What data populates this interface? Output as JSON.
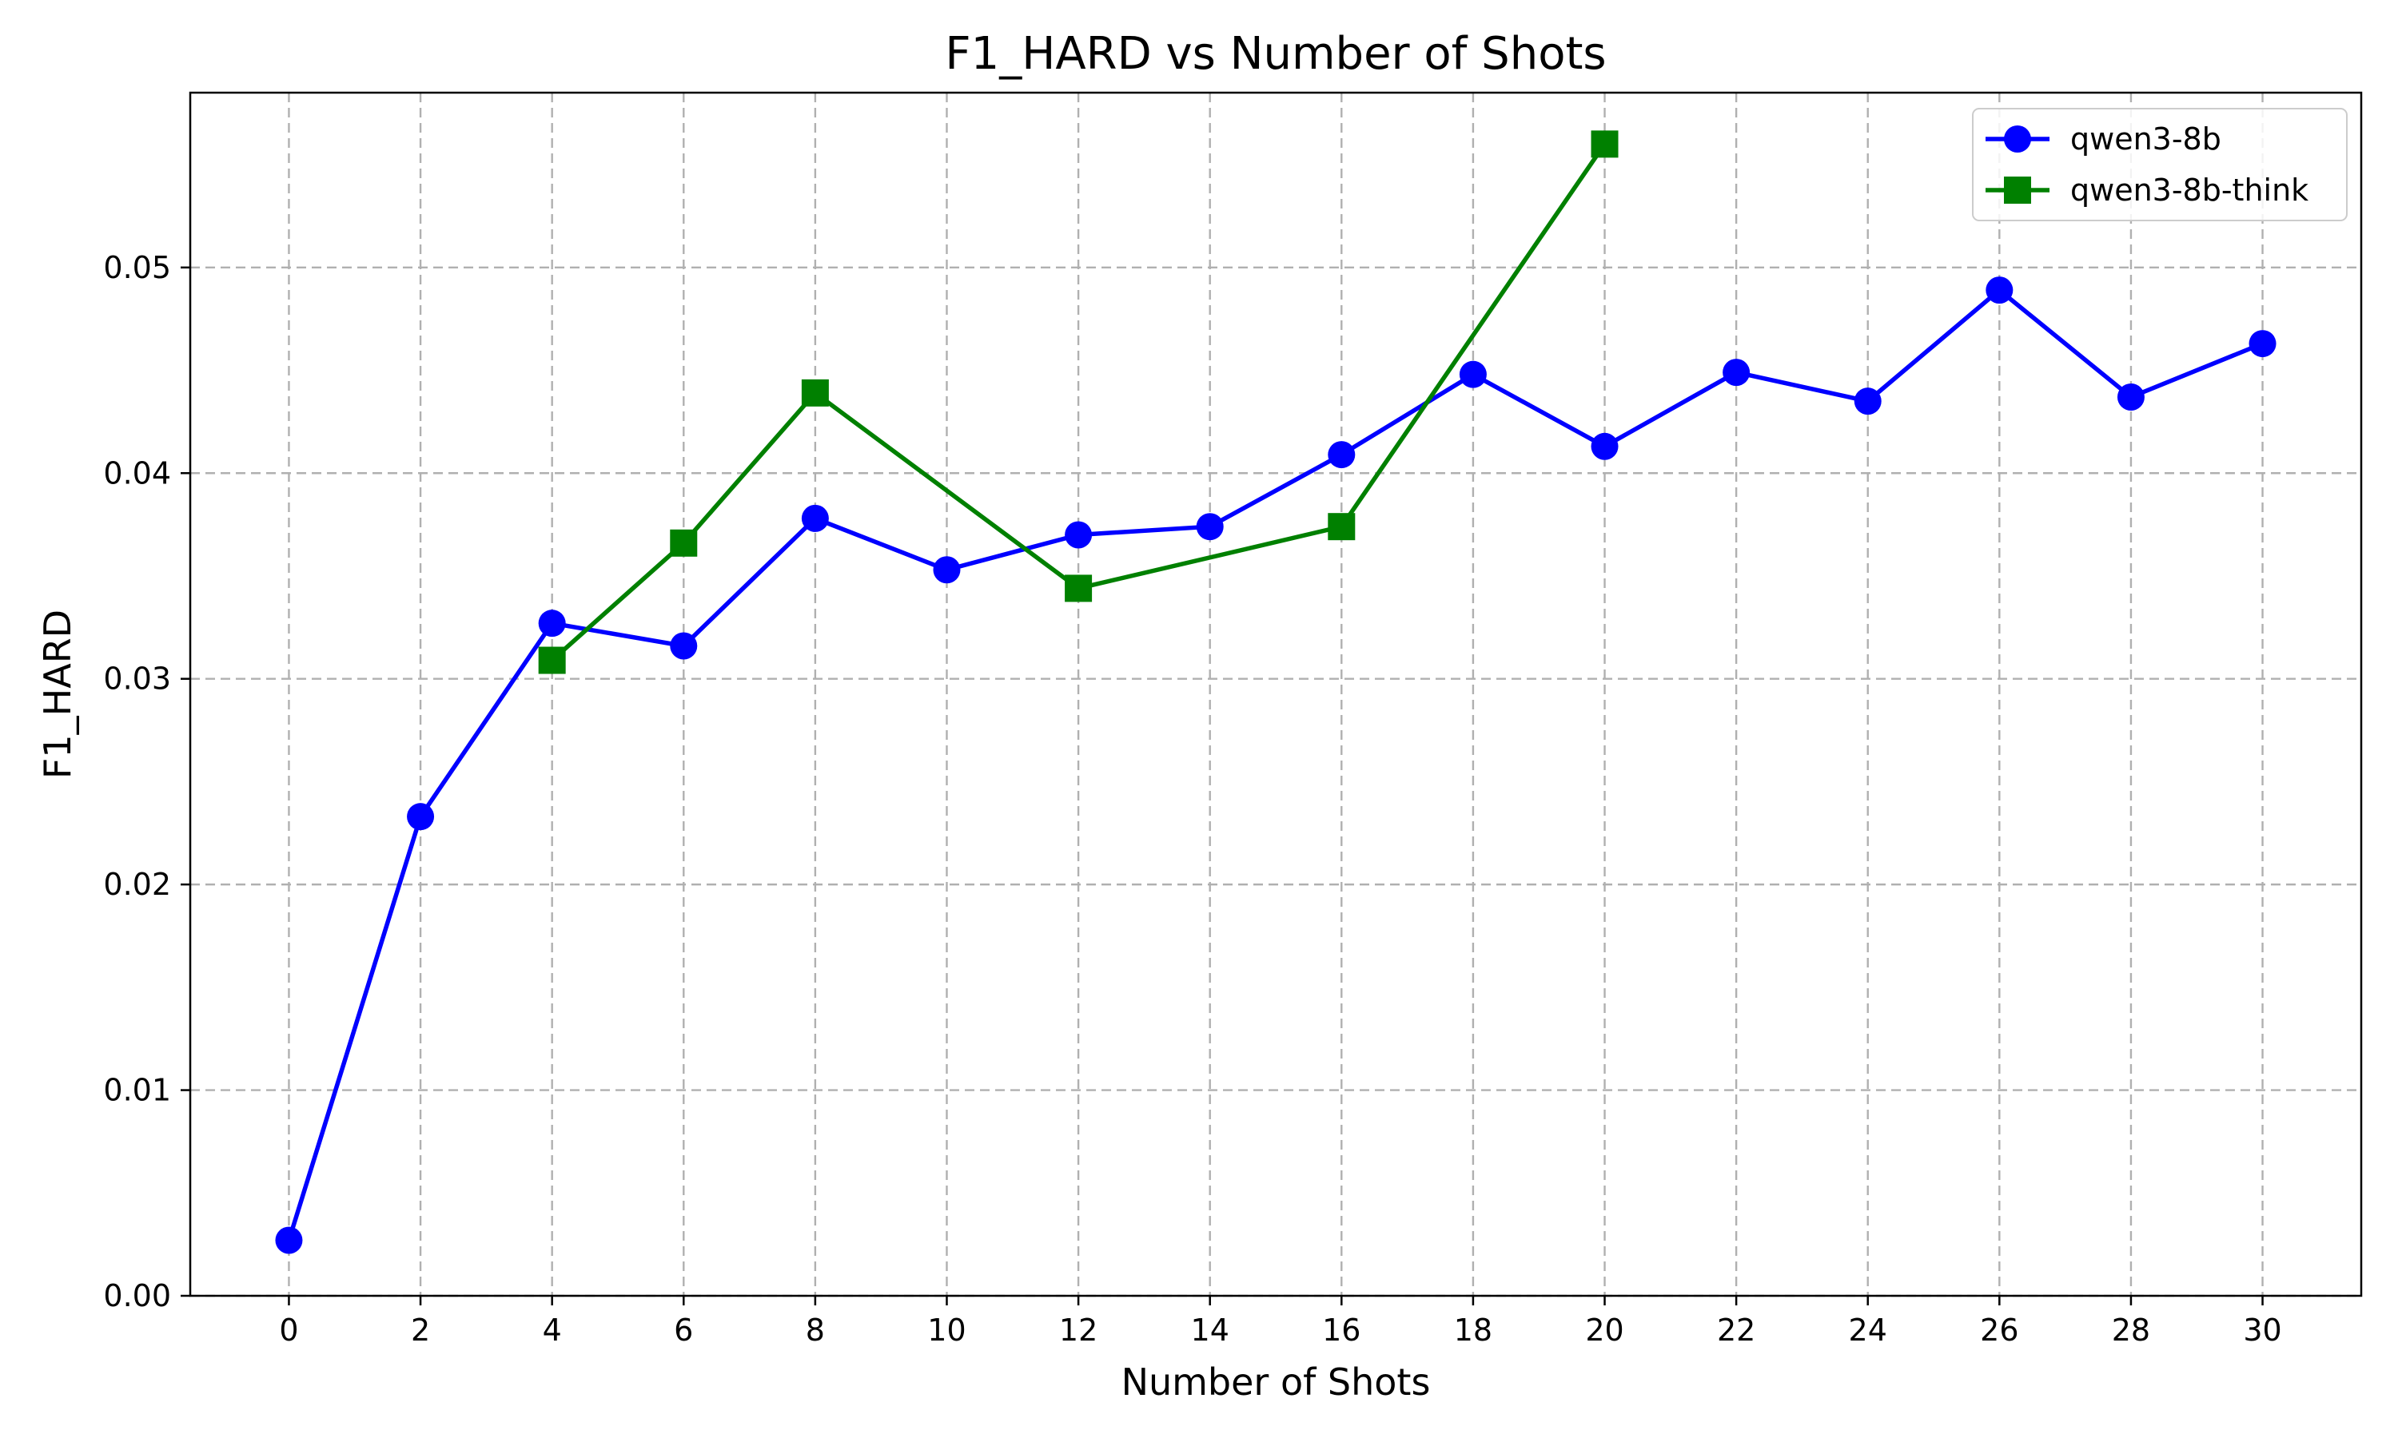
{
  "chart_data": {
    "type": "line",
    "title": "F1_HARD vs Number of Shots",
    "xlabel": "Number of Shots",
    "ylabel": "F1_HARD",
    "xlim": [
      -1.5,
      31.5
    ],
    "ylim": [
      0.0,
      0.0585
    ],
    "xticks": [
      0,
      2,
      4,
      6,
      8,
      10,
      12,
      14,
      16,
      18,
      20,
      22,
      24,
      26,
      28,
      30
    ],
    "xtick_labels": [
      "0",
      "2",
      "4",
      "6",
      "8",
      "10",
      "12",
      "14",
      "16",
      "18",
      "20",
      "22",
      "24",
      "26",
      "28",
      "30"
    ],
    "yticks": [
      0.0,
      0.01,
      0.02,
      0.03,
      0.04,
      0.05
    ],
    "ytick_labels": [
      "0.00",
      "0.01",
      "0.02",
      "0.03",
      "0.04",
      "0.05"
    ],
    "grid": true,
    "legend_position": "top-right",
    "series": [
      {
        "name": "qwen3-8b",
        "color": "#0000ff",
        "marker": "circle",
        "x": [
          0,
          2,
          4,
          6,
          8,
          10,
          12,
          14,
          16,
          18,
          20,
          22,
          24,
          26,
          28,
          30
        ],
        "values": [
          0.0027,
          0.0233,
          0.0327,
          0.0316,
          0.0378,
          0.0353,
          0.037,
          0.0374,
          0.0409,
          0.0448,
          0.0413,
          0.0449,
          0.0435,
          0.0489,
          0.0437,
          0.0463
        ]
      },
      {
        "name": "qwen3-8b-think",
        "color": "#008000",
        "marker": "square",
        "x": [
          4,
          6,
          8,
          12,
          16,
          20
        ],
        "values": [
          0.0309,
          0.0366,
          0.0439,
          0.0344,
          0.0374,
          0.056
        ]
      }
    ]
  }
}
